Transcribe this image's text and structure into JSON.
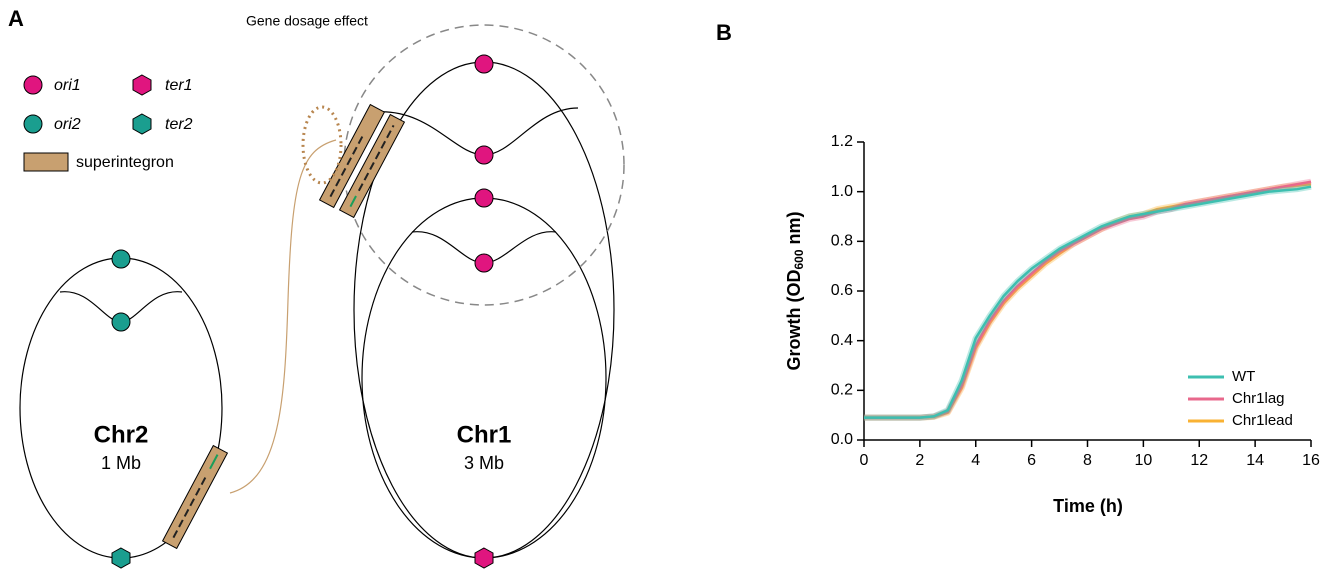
{
  "panel_a": {
    "label": "A",
    "annotation": "Gene dosage effect",
    "legend": {
      "ori1": "ori1",
      "ter1": "ter1",
      "ori2": "ori2",
      "ter2": "ter2",
      "superintegron": "superintegron"
    },
    "chr2": {
      "name": "Chr2",
      "size": "1 Mb"
    },
    "chr1": {
      "name": "Chr1",
      "size": "3 Mb"
    }
  },
  "chart_data": {
    "type": "line",
    "panel_label": "B",
    "x_label": "Time (h)",
    "y_label_parts": [
      "Growth (OD",
      "600",
      " nm)"
    ],
    "x": [
      0,
      0.5,
      1,
      1.5,
      2,
      2.5,
      3,
      3.5,
      4,
      4.5,
      5,
      5.5,
      6,
      6.5,
      7,
      7.5,
      8,
      8.5,
      9,
      9.5,
      10,
      10.5,
      11,
      11.5,
      12,
      12.5,
      13,
      13.5,
      14,
      14.5,
      15,
      15.5,
      16
    ],
    "series": [
      {
        "name": "WT",
        "color": "#3dbfb0",
        "values": [
          0.09,
          0.09,
          0.09,
          0.09,
          0.09,
          0.095,
          0.12,
          0.24,
          0.41,
          0.5,
          0.58,
          0.64,
          0.69,
          0.73,
          0.77,
          0.8,
          0.83,
          0.86,
          0.88,
          0.9,
          0.91,
          0.92,
          0.93,
          0.94,
          0.95,
          0.96,
          0.97,
          0.98,
          0.99,
          1.0,
          1.005,
          1.01,
          1.02
        ]
      },
      {
        "name": "Chr1lag",
        "color": "#e8688c",
        "values": [
          0.09,
          0.09,
          0.09,
          0.09,
          0.09,
          0.095,
          0.115,
          0.22,
          0.38,
          0.48,
          0.56,
          0.62,
          0.67,
          0.72,
          0.76,
          0.79,
          0.82,
          0.85,
          0.87,
          0.89,
          0.9,
          0.92,
          0.93,
          0.95,
          0.96,
          0.97,
          0.98,
          0.99,
          1.0,
          1.01,
          1.02,
          1.03,
          1.04
        ]
      },
      {
        "name": "Chr1lead",
        "color": "#f9b233",
        "values": [
          0.09,
          0.09,
          0.09,
          0.09,
          0.09,
          0.093,
          0.11,
          0.21,
          0.37,
          0.47,
          0.55,
          0.61,
          0.66,
          0.71,
          0.75,
          0.79,
          0.82,
          0.85,
          0.88,
          0.9,
          0.91,
          0.93,
          0.94,
          0.95,
          0.96,
          0.97,
          0.98,
          0.99,
          1.0,
          1.01,
          1.02,
          1.025,
          1.03
        ]
      }
    ],
    "xlim": [
      0,
      16
    ],
    "xticks": [
      0,
      2,
      4,
      6,
      8,
      10,
      12,
      14,
      16
    ],
    "ylim": [
      0,
      1.2
    ],
    "yticks": [
      {
        "value": 0,
        "label": "0.0"
      },
      0.2,
      0.4,
      0.6,
      0.8,
      {
        "value": 1,
        "label": "1.0"
      },
      1.2
    ],
    "legend": "lower right"
  }
}
